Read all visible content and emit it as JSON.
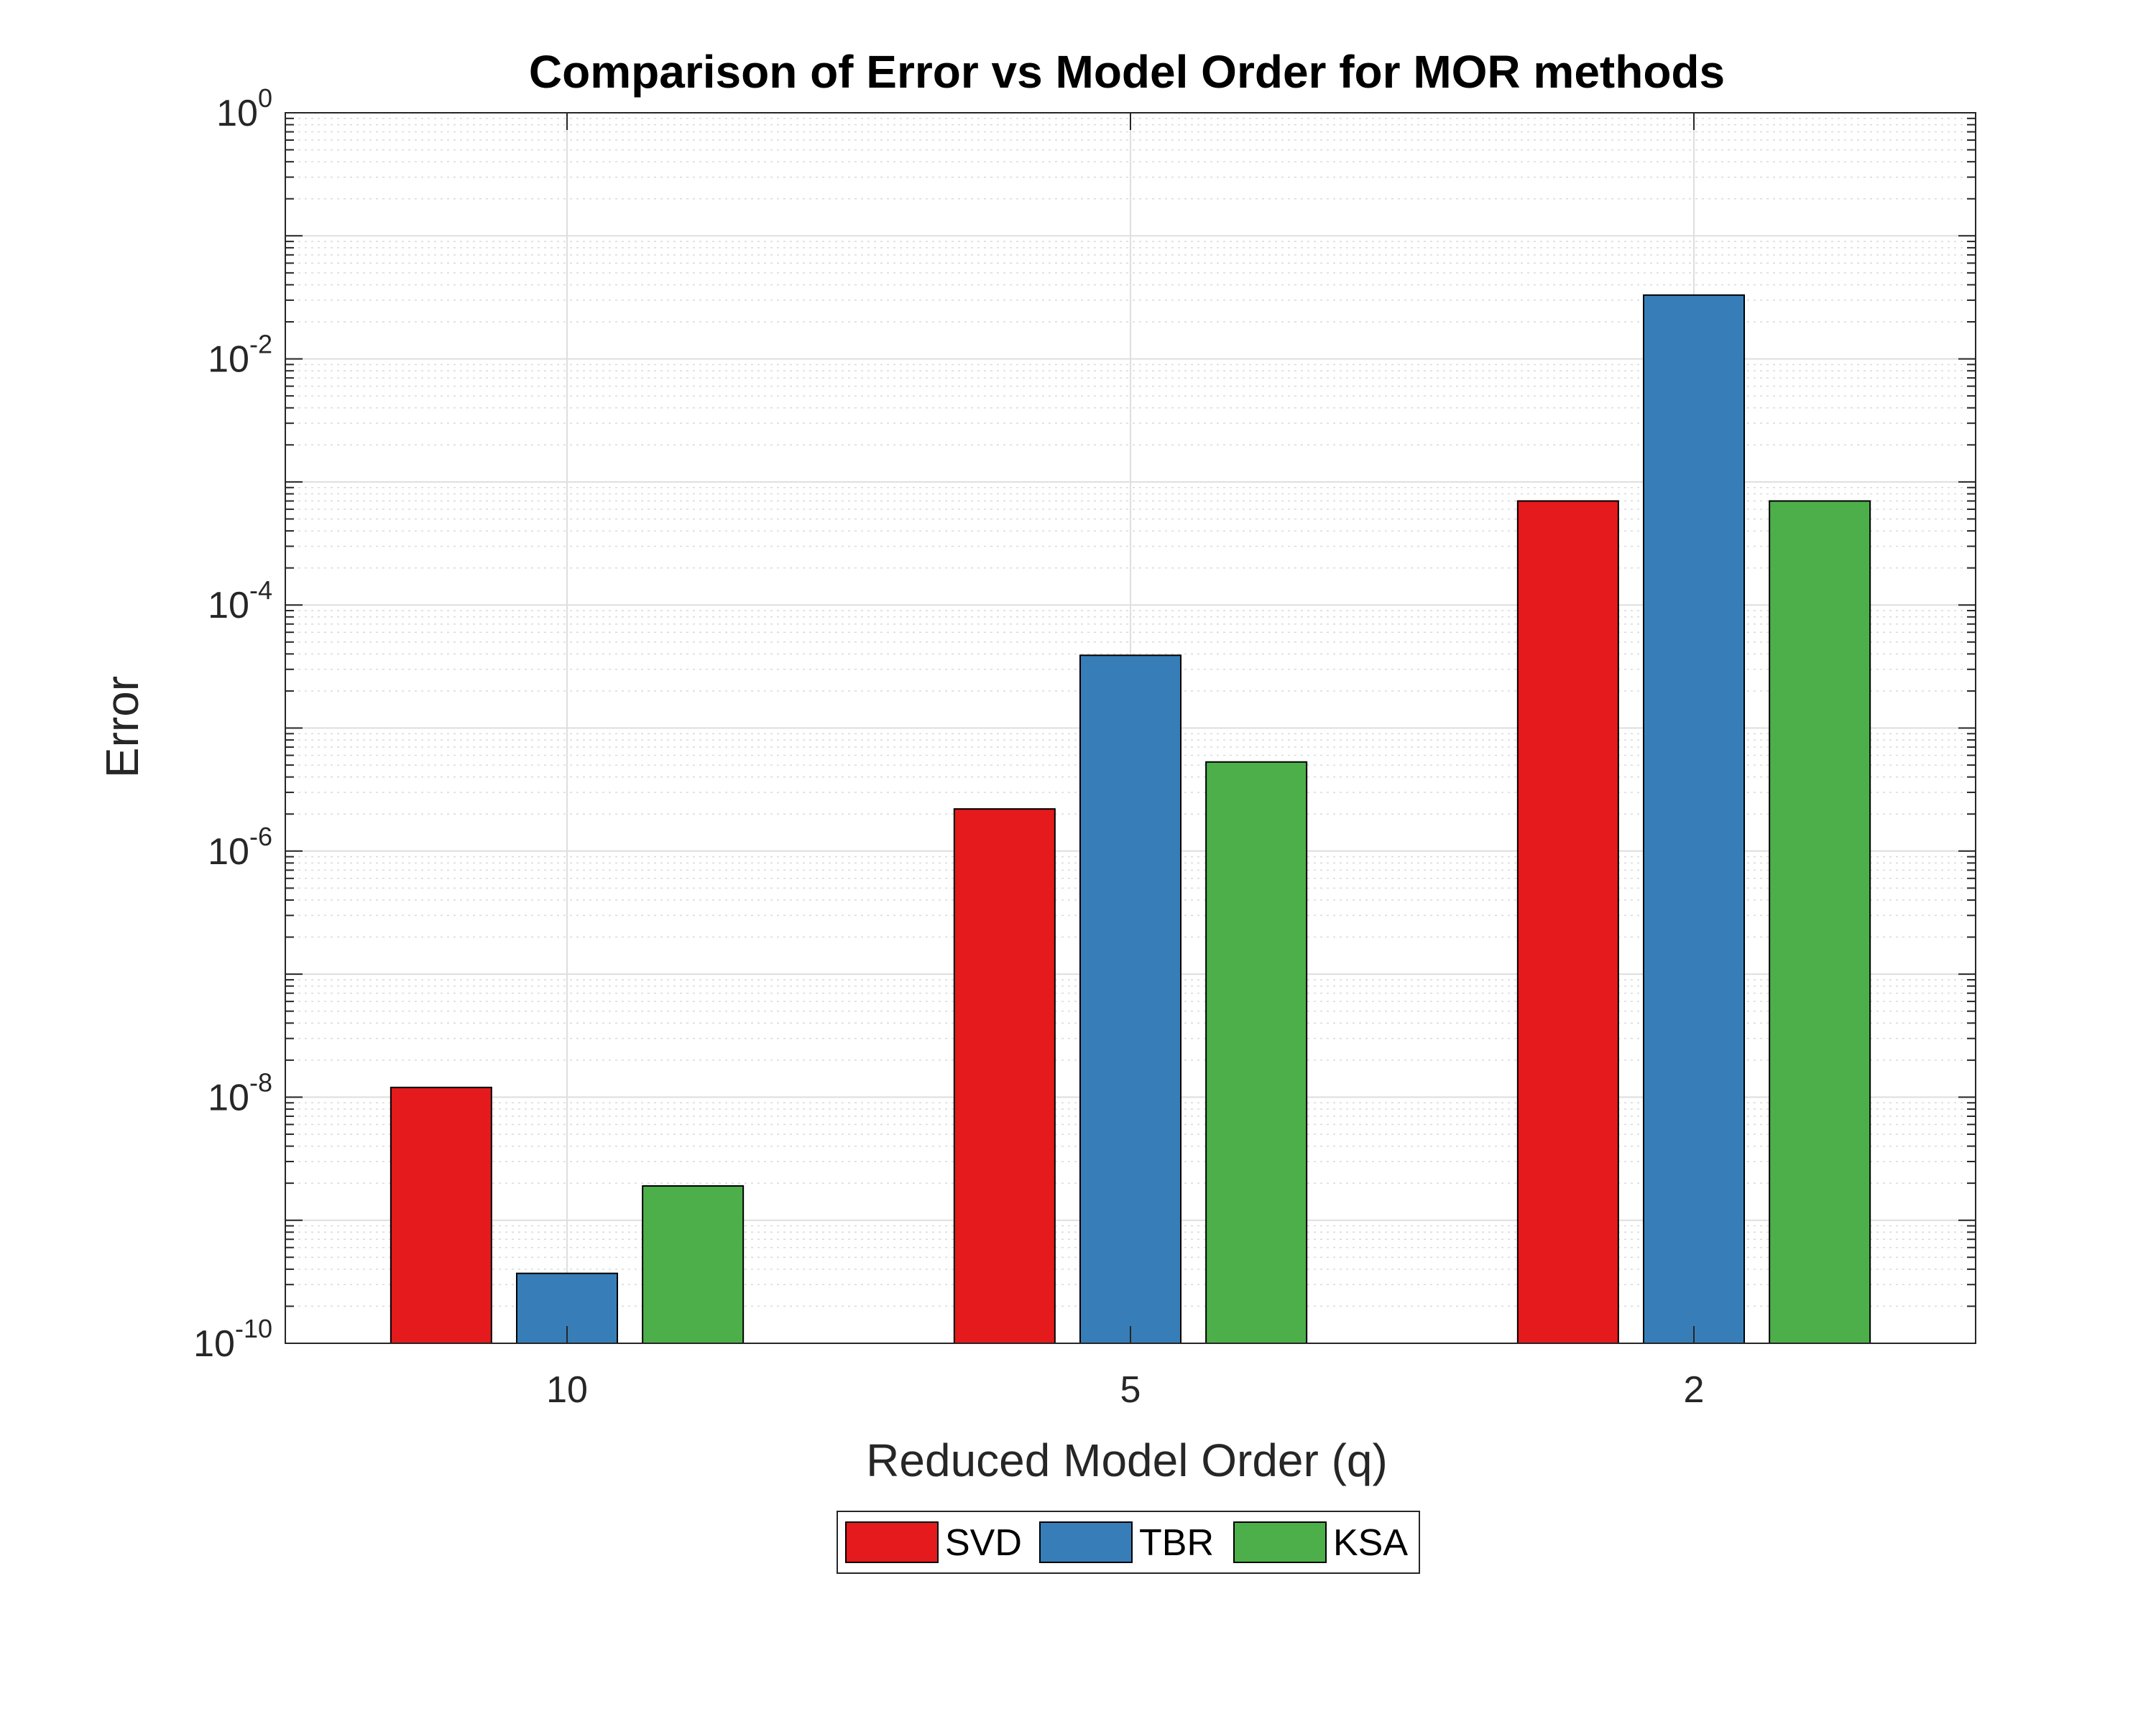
{
  "chart_data": {
    "type": "bar",
    "title": "Comparison of Error vs Model Order for MOR methods",
    "xlabel": "Reduced Model Order (q)",
    "ylabel": "Error",
    "categories": [
      "10",
      "5",
      "2"
    ],
    "series": [
      {
        "name": "SVD",
        "color": "#e41a1c",
        "values": [
          1.2e-08,
          2.2e-06,
          0.0007
        ]
      },
      {
        "name": "TBR",
        "color": "#377eb8",
        "values": [
          3.7e-10,
          3.9e-05,
          0.033
        ]
      },
      {
        "name": "KSA",
        "color": "#4daf4a",
        "values": [
          1.9e-09,
          5.3e-06,
          0.0007
        ]
      }
    ],
    "y_scale": "log",
    "ylim": [
      1e-10,
      1
    ],
    "y_ticks": [
      {
        "base": "10",
        "exp": "0",
        "value": 1
      },
      {
        "base": "10",
        "exp": "-2",
        "value": 0.01
      },
      {
        "base": "10",
        "exp": "-4",
        "value": 0.0001
      },
      {
        "base": "10",
        "exp": "-6",
        "value": 1e-06
      },
      {
        "base": "10",
        "exp": "-8",
        "value": 1e-08
      },
      {
        "base": "10",
        "exp": "-10",
        "value": 1e-10
      }
    ],
    "grid": true,
    "minor_grid": true,
    "legend_position": "bottom-center"
  }
}
